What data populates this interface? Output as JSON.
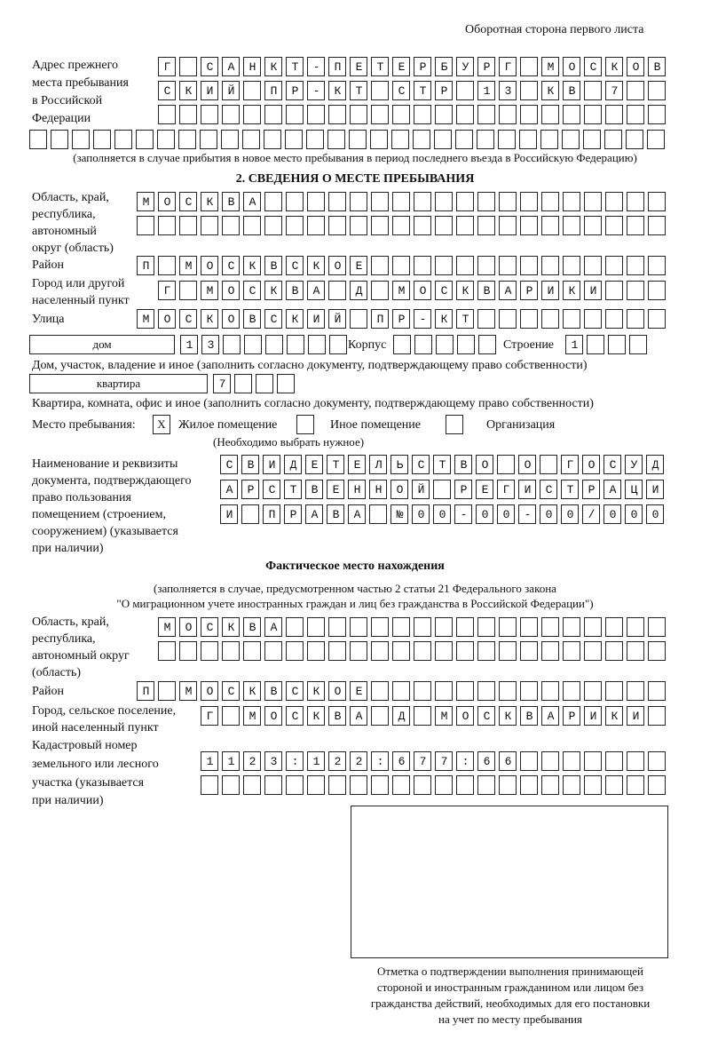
{
  "header": "Оборотная сторона первого листа",
  "prev_address": {
    "label": [
      "Адрес прежнего",
      "места пребывания",
      "в Российской",
      "Федерации"
    ],
    "rows": [
      "Г САНКТ-ПЕТЕРБУРГ МОСКОВ",
      "СКИЙ ПР-КТ СТР 13 КВ 7  ",
      "",
      ""
    ],
    "note": "(заполняется в случае прибытия в новое место пребывания в период последнего въезда в Российскую Федерацию)"
  },
  "section2": {
    "title": "2. СВЕДЕНИЯ О МЕСТЕ ПРЕБЫВАНИЯ",
    "region_label": [
      "Область, край,",
      "республика,",
      "автономный",
      "округ (область)"
    ],
    "region_rows": [
      "МОСКВА",
      ""
    ],
    "district_label": "Район",
    "district": "П МОСКВСКОЕ",
    "city_label": [
      "Город или другой",
      "населенный пункт"
    ],
    "city": "Г МОСКВА Д МОСКВАРИКИ",
    "street_label": "Улица",
    "street": "МОСКОВСКИЙ ПР-КТ",
    "house_type": "дом",
    "house": "13",
    "korpus_label": "Корпус",
    "korpus": "",
    "building_label": "Строение",
    "building": "1",
    "house_note": "Дом, участок, владение и иное (заполнить согласно документу, подтверждающему право собственности)",
    "flat_type": "квартира",
    "flat": "7",
    "flat_note": "Квартира, комната, офис и иное (заполнить согласно документу, подтверждающему право собственности)",
    "stay_label": "Место пребывания:",
    "opt1_mark": "X",
    "opt1": "Жилое помещение",
    "opt2": "Иное помещение",
    "opt3": "Организация",
    "choose_note": "(Необходимо выбрать нужное)",
    "doc_label": [
      "Наименование и реквизиты",
      "документа, подтверждающего",
      "право пользования",
      "помещением (строением,",
      "сооружением) (указывается",
      "при наличии)"
    ],
    "doc_rows": [
      "СВИДЕТЕЛЬСТВО О ГОСУД",
      "АРСТВЕННОЙ РЕГИСТРАЦИ",
      "И ПРАВА №00-00-00/000"
    ]
  },
  "actual": {
    "title": "Фактическое место нахождения",
    "subtitle": [
      "(заполняется в случае, предусмотренном частью 2 статьи 21 Федерального закона",
      "\"О миграционном учете иностранных граждан и лиц без гражданства в Российской Федерации\")"
    ],
    "region_label": [
      "Область, край,",
      "республика,",
      "автономный округ",
      "(область)"
    ],
    "region_rows": [
      "МОСКВА",
      ""
    ],
    "district_label": "Район",
    "district": "П МОСКВСКОЕ",
    "city_label": [
      "Город, сельское поселение,",
      "иной населенный пункт"
    ],
    "city": "Г МОСКВА Д МОСКВАРИКИ",
    "cadastre_label": [
      "Кадастровый номер",
      "земельного или лесного",
      "участка (указывается",
      "при наличии)"
    ],
    "cadastre_rows": [
      "1123:122:677:66",
      ""
    ]
  },
  "stamp_caption": [
    "Отметка о подтверждении выполнения принимающей",
    "стороной и иностранным гражданином или лицом без",
    "гражданства действий, необходимых для его постановки",
    "на учет по месту пребывания"
  ]
}
